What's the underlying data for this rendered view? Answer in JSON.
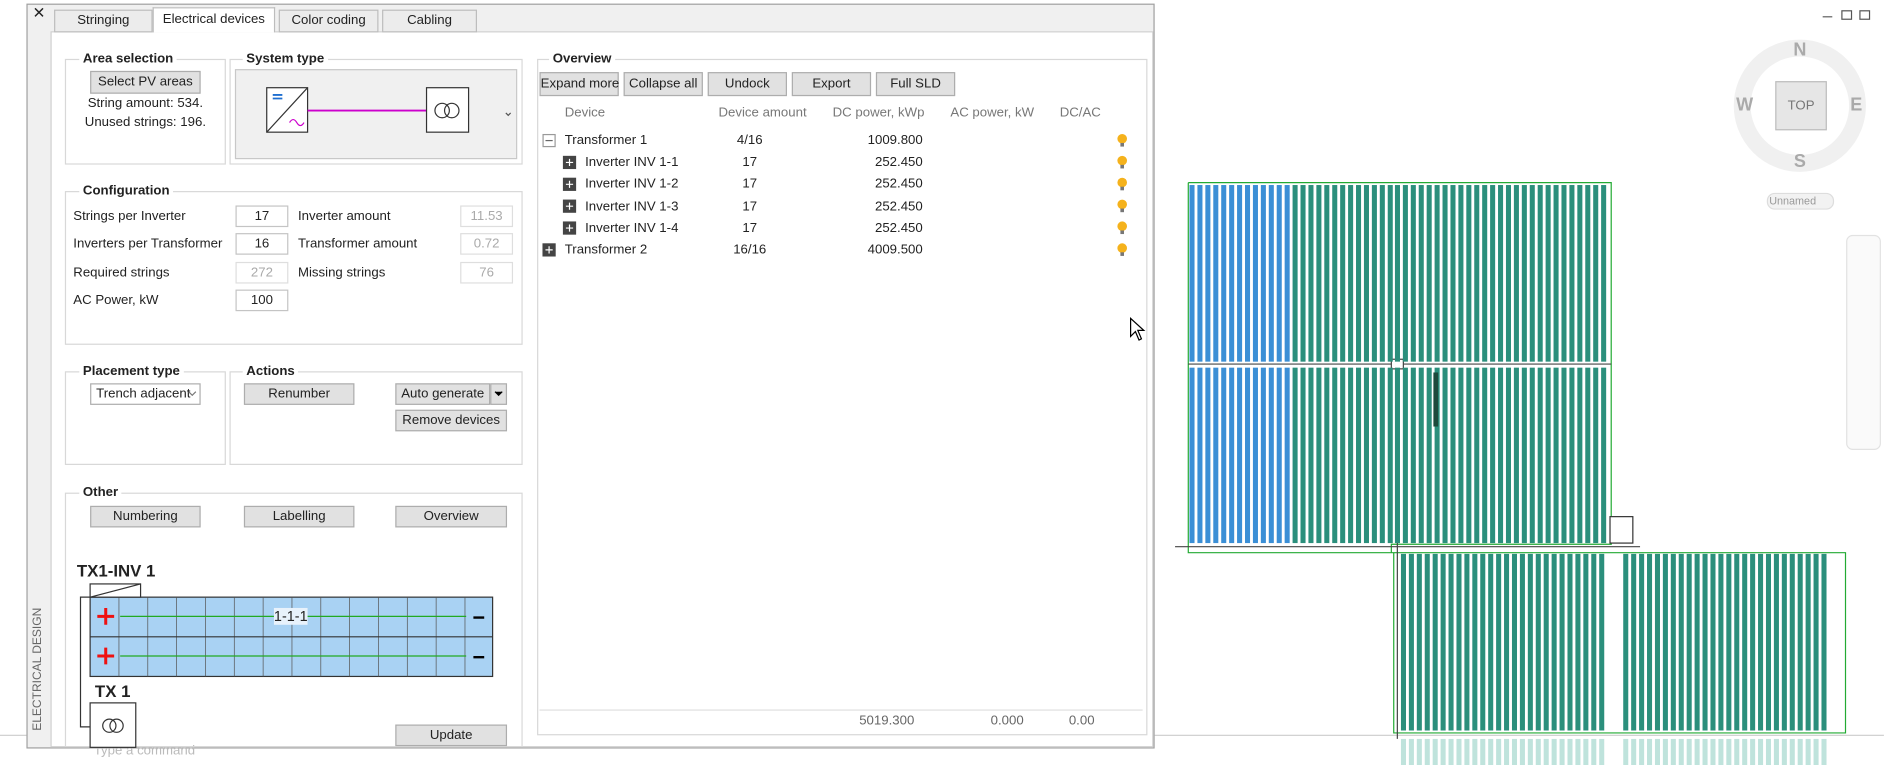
{
  "tabs": [
    "Stringing",
    "Electrical devices",
    "Color coding",
    "Cabling"
  ],
  "side_label": "ELECTRICAL DESIGN",
  "command_prompt": "Type a command",
  "area_selection": {
    "title": "Area selection",
    "button": "Select PV areas",
    "string_amount": "String amount: 534.",
    "unused_strings": "Unused strings: 196."
  },
  "system_type": {
    "title": "System type",
    "inverter": "Inverter",
    "transformer": "Transformer"
  },
  "configuration": {
    "title": "Configuration",
    "left": [
      {
        "label": "Strings per Inverter",
        "value": "17"
      },
      {
        "label": "Inverters per Transformer",
        "value": "16"
      },
      {
        "label": "Required strings",
        "value": "272"
      },
      {
        "label": "AC Power, kW",
        "value": "100"
      }
    ],
    "right": [
      {
        "label": "Inverter amount",
        "value": "11.53"
      },
      {
        "label": "Transformer amount",
        "value": "0.72"
      },
      {
        "label": "Missing strings",
        "value": "76"
      }
    ]
  },
  "placement": {
    "title": "Placement type",
    "select": "Trench adjacent"
  },
  "actions": {
    "title": "Actions",
    "renumber": "Renumber",
    "auto_generate": "Auto generate",
    "remove_devices": "Remove devices"
  },
  "other": {
    "title": "Other",
    "buttons": [
      "Numbering",
      "Labelling",
      "Overview"
    ],
    "inverter_label": "TX1-INV 1",
    "string_label": "1-1-1",
    "transformer_label": "TX 1",
    "update": "Update"
  },
  "overview": {
    "title": "Overview",
    "buttons": [
      "Expand more",
      "Collapse all",
      "Undock",
      "Export",
      "Full SLD"
    ],
    "columns": [
      "Device",
      "Device amount",
      "DC power, kWp",
      "AC power, kW",
      "DC/AC"
    ],
    "rows": [
      {
        "device": "Transformer 1",
        "amount": "4/16",
        "dc": "1009.800",
        "children": [
          {
            "device": "Inverter INV 1-1",
            "amount": "17",
            "dc": "252.450"
          },
          {
            "device": "Inverter INV 1-2",
            "amount": "17",
            "dc": "252.450"
          },
          {
            "device": "Inverter INV 1-3",
            "amount": "17",
            "dc": "252.450"
          },
          {
            "device": "Inverter INV 1-4",
            "amount": "17",
            "dc": "252.450"
          }
        ]
      },
      {
        "device": "Transformer 2",
        "amount": "16/16",
        "dc": "4009.500"
      }
    ],
    "totals": [
      "5019.300",
      "0.000",
      "0.00"
    ]
  },
  "viewcube": {
    "north": "N",
    "west": "W",
    "east": "E",
    "south": "S",
    "face": "TOP",
    "view": "Unnamed"
  }
}
